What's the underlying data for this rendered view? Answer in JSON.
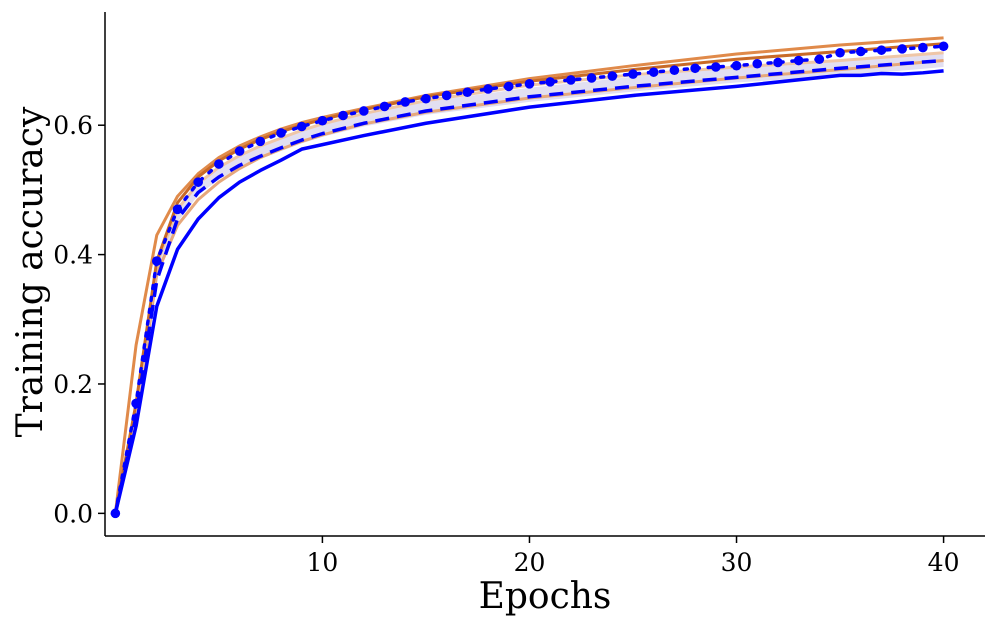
{
  "chart_data": {
    "type": "line",
    "title": "",
    "xlabel": "Epochs",
    "ylabel": "Training accuracy",
    "xlim": [
      -0.5,
      42
    ],
    "ylim": [
      -0.035,
      0.775
    ],
    "xticks": [
      10,
      20,
      30,
      40
    ],
    "xtick_labels": [
      "10",
      "20",
      "30",
      "40"
    ],
    "yticks": [
      0.0,
      0.2,
      0.4,
      0.6
    ],
    "ytick_labels": [
      "0.0",
      "0.2",
      "0.4",
      "0.6"
    ],
    "grid": false,
    "legend": "none",
    "series": [
      {
        "style": "band",
        "color": "#d8d4ec",
        "x": [
          0,
          1,
          2,
          3,
          4,
          5,
          6,
          7,
          8,
          9,
          10,
          12,
          15,
          20,
          25,
          30,
          35,
          40
        ],
        "upper": [
          0,
          0.15,
          0.38,
          0.468,
          0.51,
          0.534,
          0.552,
          0.566,
          0.578,
          0.59,
          0.6,
          0.616,
          0.636,
          0.658,
          0.675,
          0.69,
          0.7,
          0.712
        ],
        "lower": [
          0,
          0.15,
          0.36,
          0.45,
          0.492,
          0.516,
          0.534,
          0.548,
          0.56,
          0.572,
          0.582,
          0.598,
          0.616,
          0.636,
          0.652,
          0.666,
          0.676,
          0.69
        ]
      },
      {
        "style": "line",
        "color": "#e6a87c",
        "width": 3,
        "dash": "",
        "x": [
          0,
          1,
          2,
          3,
          4,
          5,
          6,
          7,
          8,
          9,
          10,
          12,
          15,
          20,
          25,
          30,
          35,
          40
        ],
        "y": [
          0,
          0.14,
          0.37,
          0.445,
          0.485,
          0.512,
          0.533,
          0.55,
          0.563,
          0.575,
          0.585,
          0.602,
          0.62,
          0.642,
          0.658,
          0.673,
          0.686,
          0.7
        ]
      },
      {
        "style": "line",
        "color": "#efc6a7",
        "width": 3,
        "dash": "",
        "x": [
          0,
          1,
          2,
          3,
          4,
          5,
          6,
          7,
          8,
          9,
          10,
          12,
          15,
          20,
          25,
          30,
          35,
          40
        ],
        "y": [
          0,
          0.15,
          0.385,
          0.47,
          0.51,
          0.535,
          0.553,
          0.568,
          0.58,
          0.592,
          0.602,
          0.618,
          0.638,
          0.662,
          0.678,
          0.69,
          0.7,
          0.712
        ]
      },
      {
        "style": "line",
        "color": "#e08a4a",
        "width": 3,
        "dash": "",
        "x": [
          0,
          1,
          2,
          3,
          4,
          5,
          6,
          7,
          8,
          9,
          10,
          12,
          15,
          20,
          25,
          30,
          35,
          40
        ],
        "y": [
          0,
          0.26,
          0.43,
          0.49,
          0.525,
          0.55,
          0.568,
          0.582,
          0.594,
          0.604,
          0.612,
          0.626,
          0.646,
          0.672,
          0.692,
          0.71,
          0.724,
          0.735
        ]
      },
      {
        "style": "line",
        "color": "#c86a28",
        "width": 3,
        "dash": "",
        "x": [
          0,
          1,
          2,
          3,
          4,
          5,
          6,
          7,
          8,
          9,
          10,
          12,
          15,
          20,
          25,
          30,
          35,
          40
        ],
        "y": [
          0,
          0.17,
          0.39,
          0.48,
          0.52,
          0.545,
          0.563,
          0.578,
          0.59,
          0.6,
          0.609,
          0.624,
          0.644,
          0.668,
          0.686,
          0.702,
          0.714,
          0.726
        ]
      },
      {
        "style": "line",
        "color": "#0000ff",
        "width": 3.5,
        "dash": "",
        "x": [
          0,
          1,
          2,
          3,
          4,
          5,
          6,
          7,
          8,
          9,
          10,
          12,
          15,
          20,
          25,
          30,
          35,
          36,
          37,
          38,
          39,
          40
        ],
        "y": [
          0,
          0.135,
          0.32,
          0.408,
          0.455,
          0.488,
          0.512,
          0.53,
          0.546,
          0.563,
          0.57,
          0.584,
          0.603,
          0.628,
          0.646,
          0.66,
          0.677,
          0.677,
          0.68,
          0.679,
          0.681,
          0.684
        ]
      },
      {
        "style": "line",
        "color": "#0000ff",
        "width": 3.5,
        "dash": "14,8",
        "x": [
          0,
          1,
          2,
          3,
          4,
          5,
          6,
          7,
          8,
          9,
          10,
          12,
          15,
          20,
          25,
          30,
          35,
          40
        ],
        "y": [
          0,
          0.15,
          0.36,
          0.455,
          0.496,
          0.52,
          0.538,
          0.552,
          0.565,
          0.577,
          0.587,
          0.603,
          0.622,
          0.644,
          0.66,
          0.674,
          0.688,
          0.7
        ]
      },
      {
        "style": "dots",
        "color": "#0000ff",
        "width": 3.5,
        "dash": "3,9",
        "x": [
          0,
          1,
          2,
          3,
          4,
          5,
          6,
          7,
          8,
          9,
          10,
          11,
          12,
          13,
          14,
          15,
          16,
          17,
          18,
          19,
          20,
          21,
          22,
          23,
          24,
          25,
          26,
          27,
          28,
          29,
          30,
          31,
          32,
          33,
          34,
          35,
          36,
          37,
          38,
          39,
          40
        ],
        "y": [
          0,
          0.17,
          0.39,
          0.47,
          0.512,
          0.54,
          0.56,
          0.575,
          0.588,
          0.598,
          0.607,
          0.615,
          0.622,
          0.629,
          0.636,
          0.641,
          0.646,
          0.651,
          0.656,
          0.66,
          0.664,
          0.667,
          0.67,
          0.673,
          0.676,
          0.679,
          0.682,
          0.685,
          0.688,
          0.69,
          0.692,
          0.695,
          0.697,
          0.7,
          0.702,
          0.712,
          0.714,
          0.716,
          0.718,
          0.72,
          0.722
        ]
      }
    ]
  }
}
